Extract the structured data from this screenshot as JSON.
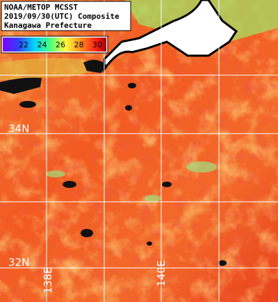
{
  "header": {
    "lines": [
      "NOAA/METOP MCSST",
      "2019/09/30(UTC) Composite",
      "Kanagawa Prefecture"
    ]
  },
  "legend": {
    "ticks": [
      22,
      24,
      26,
      28,
      30
    ]
  },
  "latitude_labels": [
    "34N",
    "32N"
  ],
  "longitude_labels": [
    "138E",
    "140E"
  ]
}
